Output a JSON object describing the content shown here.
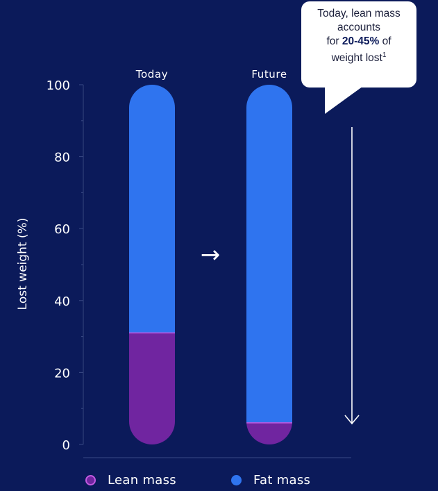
{
  "chart_data": {
    "type": "bar",
    "subtype": "stacked-percent",
    "categories": [
      "Today",
      "Future"
    ],
    "series": [
      {
        "name": "Lean mass",
        "values": [
          31,
          6
        ],
        "color": "#7025a0"
      },
      {
        "name": "Fat mass",
        "values": [
          69,
          94
        ],
        "color": "#2f74ef"
      }
    ],
    "ylabel": "Lost weight (%)",
    "ylim": [
      0,
      100
    ],
    "yticks": [
      0,
      20,
      40,
      60,
      80,
      100
    ],
    "legend_position": "bottom",
    "arrow_glyph": "→",
    "annotation": {
      "line1": "Today, lean mass",
      "line2": "accounts",
      "line3_prefix": "for ",
      "line3_bold": "20-45%",
      "line3_suffix": " of",
      "line4": "weight lost",
      "line4_sup": "1"
    },
    "colors": {
      "background": "#0b1a5a",
      "callout": "#ffffff",
      "lean_border": "#c25ae0"
    }
  }
}
